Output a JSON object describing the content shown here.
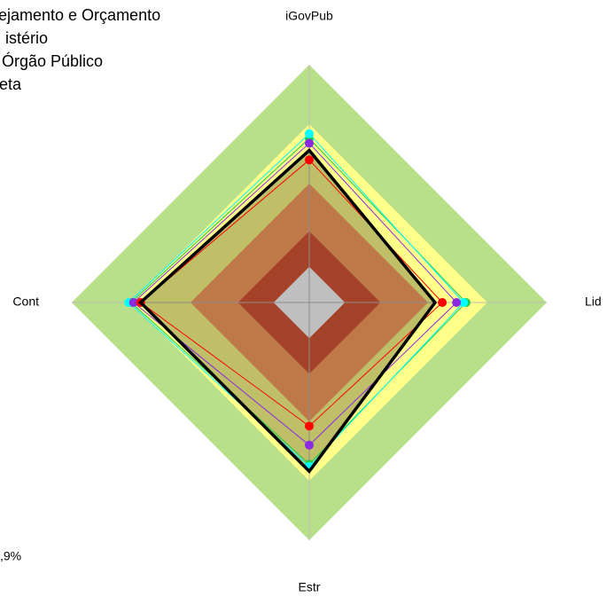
{
  "chart_data": {
    "type": "radar",
    "categories": [
      "iGovPub",
      "Lid",
      "Estr",
      "Cont"
    ],
    "rlim": [
      0,
      100
    ],
    "bands": [
      {
        "value": 100,
        "color": "#b8e08a"
      },
      {
        "value": 75,
        "color": "#ffff8a"
      },
      {
        "value": 50,
        "color": "#ffa060"
      },
      {
        "value": 30,
        "color": "#dc5a38"
      },
      {
        "value": 15,
        "color": "#ffffff"
      }
    ],
    "fill_series_color": "#000000",
    "series": [
      {
        "color": "#22cc44",
        "values": [
          69,
          66,
          68,
          75
        ]
      },
      {
        "name": "ejamento e Orçamento",
        "color": "#00ffff",
        "values": [
          71,
          65,
          69,
          76
        ]
      },
      {
        "name": "istério",
        "color": "#8a2be2",
        "values": [
          67,
          62,
          60,
          74
        ]
      },
      {
        "name": "Órgão Público",
        "color": "#ff0000",
        "values": [
          60,
          56,
          52,
          71
        ]
      },
      {
        "name": "eta",
        "color": "#000000",
        "values": [
          64,
          53,
          71,
          71
        ]
      }
    ],
    "annotation": ",9%"
  }
}
